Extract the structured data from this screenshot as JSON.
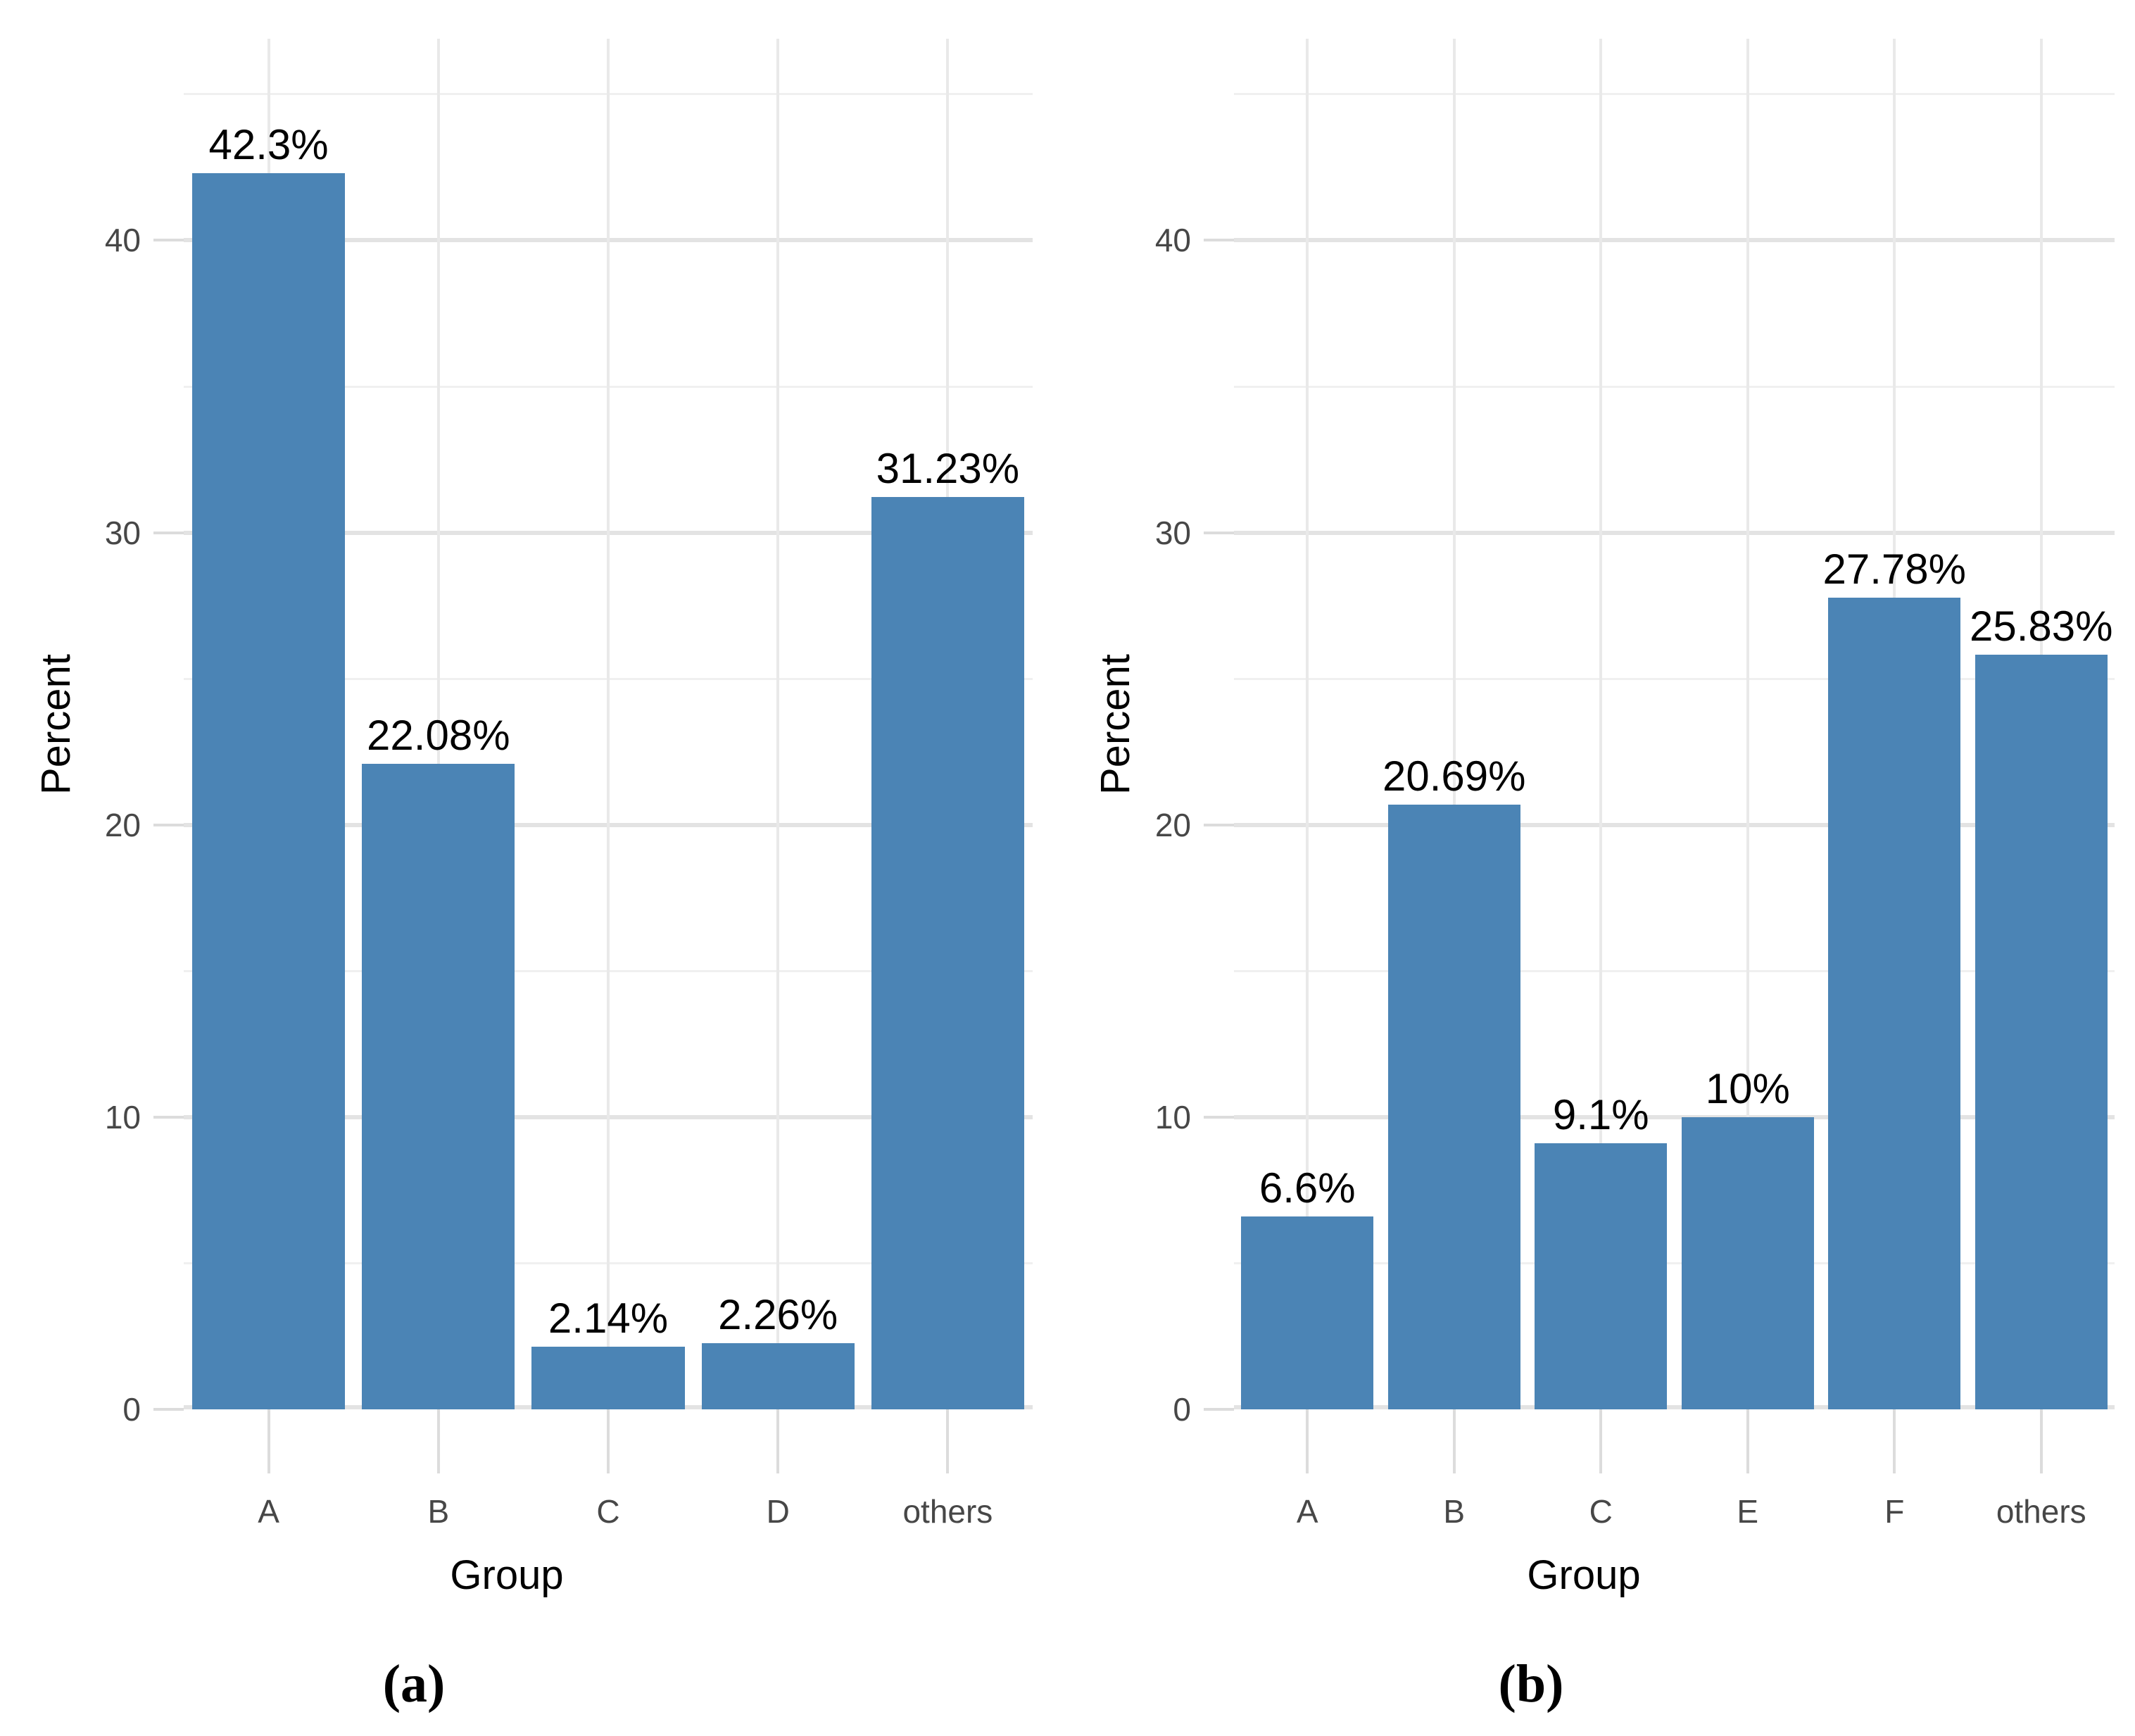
{
  "figure": {
    "panels": [
      {
        "caption": "(a)",
        "chart_data": {
          "type": "bar",
          "categories": [
            "A",
            "B",
            "C",
            "D",
            "others"
          ],
          "values": [
            42.3,
            22.08,
            2.14,
            2.26,
            31.23
          ],
          "value_labels": [
            "42.3%",
            "22.08%",
            "2.14%",
            "2.26%",
            "31.23%"
          ],
          "title": "",
          "xlabel": "Group",
          "ylabel": "Percent",
          "ylim": [
            0,
            46.9
          ],
          "yticks": [
            0,
            10,
            20,
            30,
            40
          ],
          "yticks_minor": [
            5,
            15,
            25,
            35,
            45
          ],
          "grid": "on",
          "legend": "none",
          "bar_color": "#4B84B5"
        }
      },
      {
        "caption": "(b)",
        "chart_data": {
          "type": "bar",
          "categories": [
            "A",
            "B",
            "C",
            "E",
            "F",
            "others"
          ],
          "values": [
            6.6,
            20.69,
            9.1,
            10,
            27.78,
            25.83
          ],
          "value_labels": [
            "6.6%",
            "20.69%",
            "9.1%",
            "10%",
            "27.78%",
            "25.83%"
          ],
          "title": "",
          "xlabel": "Group",
          "ylabel": "Percent",
          "ylim": [
            0,
            46.9
          ],
          "yticks": [
            0,
            10,
            20,
            30,
            40
          ],
          "yticks_minor": [
            5,
            15,
            25,
            35,
            45
          ],
          "grid": "on",
          "legend": "none",
          "bar_color": "#4B84B5"
        }
      }
    ],
    "colors": {
      "background": "#ffffff",
      "bar": "#4B84B5",
      "grid_major": "#e3e3e3",
      "grid_minor": "#f0f0f0",
      "grid_vertical": "#e9e9e9",
      "tick": "#dcdcdc",
      "axis_text": "#474747",
      "title_text": "#000000",
      "label_text": "#000000"
    }
  }
}
